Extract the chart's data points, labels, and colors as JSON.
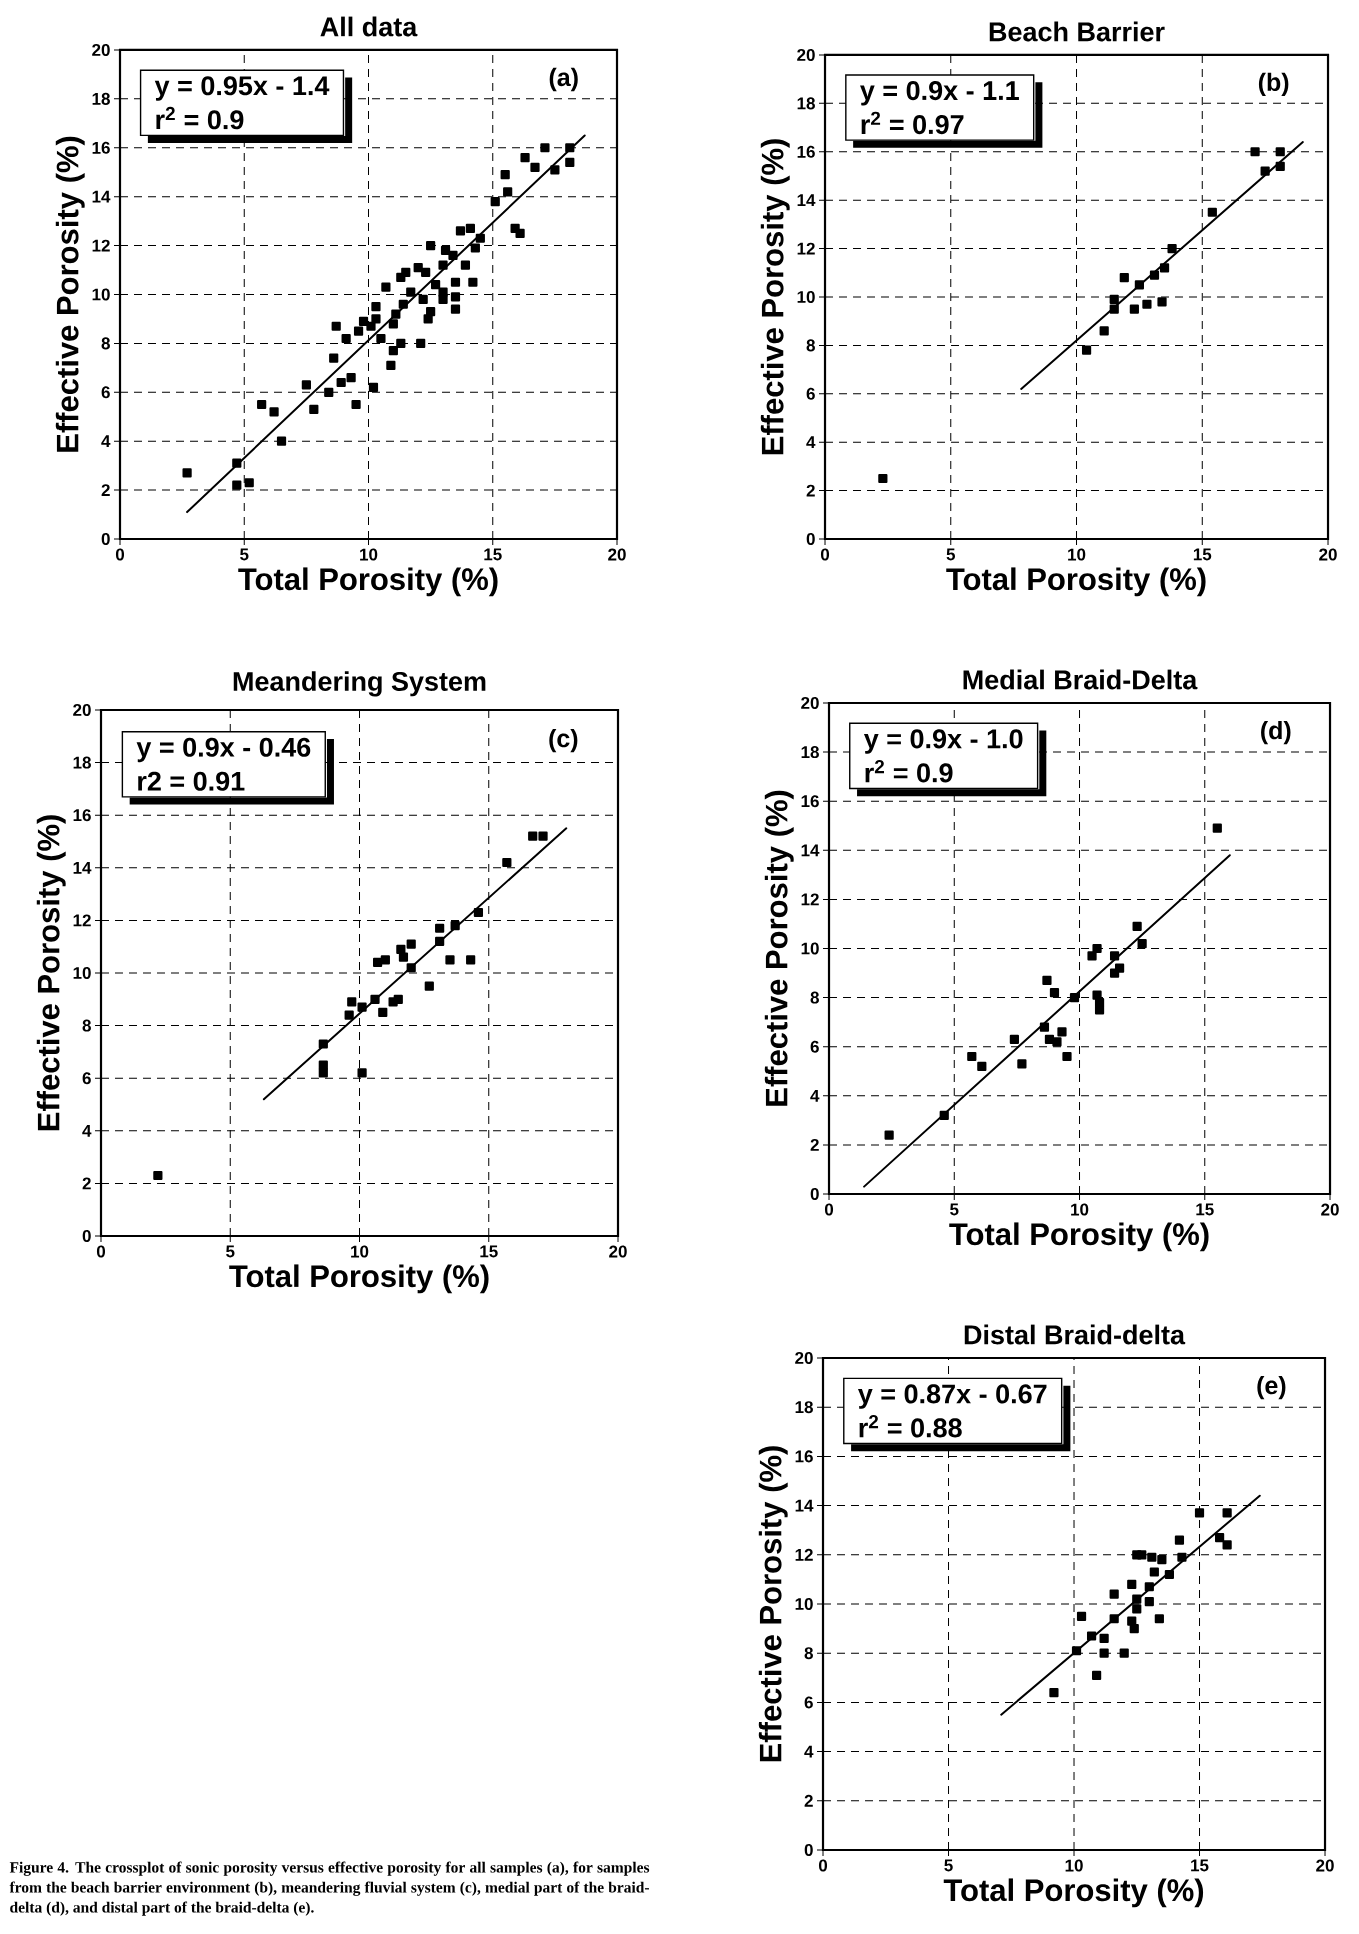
{
  "chart_data": [
    {
      "type": "scatter",
      "title": "All data",
      "xlabel": "Total Porosity (%)",
      "ylabel": "Effective Porosity (%)",
      "xlim": [
        0,
        20
      ],
      "ylim": [
        0,
        20
      ],
      "xticks": [
        0,
        5,
        10,
        15,
        20
      ],
      "yticks": [
        0,
        2,
        4,
        6,
        8,
        10,
        12,
        14,
        16,
        18,
        20
      ],
      "grid": true,
      "marker": "square",
      "annotations": [
        "y = 0.95x - 1.4",
        "r$^{2}$  = 0.9",
        "(a)",
        "Figure 4. The crossplot of sonic porosity versus effective porosity for all samples (a), for samples from the beach barrier environment (b), meandering fluvial system (c), medial part of the braid-delta (d), and distal part of the braid-delta (e)."
      ],
      "series": [
        {
          "color": "#000000",
          "x": [
            2.7,
            4.7,
            4.7,
            5.2,
            5.7,
            6.2,
            6.5,
            7.5,
            7.8,
            8.4,
            8.6,
            8.7,
            9.1,
            8.9,
            9.3,
            9.5,
            9.6,
            9.8,
            10.2,
            10.1,
            10.3,
            10.5,
            10.7,
            10.9,
            11.0,
            11.0,
            11.3,
            11.4,
            11.5,
            11.7,
            12.0,
            12.1,
            12.2,
            12.4,
            12.5,
            12.7,
            13.0,
            13.1,
            13.4,
            13.5,
            13.5,
            13.5,
            13.7,
            13.9,
            14.1,
            14.2,
            14.3,
            14.5,
            15.1,
            15.5,
            15.6,
            15.9,
            16.1,
            16.3,
            16.7,
            17.1,
            17.5,
            18.1,
            18.1,
            11.3,
            12.3,
            13.0,
            11.1,
            10.3,
            12.5,
            13.0
          ],
          "values": [
            2.7,
            3.1,
            2.2,
            2.3,
            5.5,
            5.2,
            4.0,
            6.3,
            5.3,
            6.0,
            7.4,
            8.7,
            8.2,
            6.4,
            6.6,
            5.5,
            8.5,
            8.9,
            6.2,
            8.7,
            9.5,
            8.2,
            10.3,
            7.1,
            7.7,
            8.8,
            8.0,
            9.6,
            10.9,
            10.1,
            11.1,
            8.0,
            9.8,
            9.0,
            12.0,
            10.4,
            9.8,
            11.8,
            11.6,
            10.5,
            9.9,
            9.4,
            12.6,
            11.2,
            12.7,
            10.5,
            11.9,
            12.3,
            13.8,
            14.9,
            14.2,
            12.7,
            12.5,
            15.6,
            15.2,
            16.0,
            15.1,
            16.0,
            15.4,
            10.7,
            10.9,
            11.2,
            9.2,
            9.0,
            9.3,
            10.1
          ]
        },
        {
          "type": "line",
          "marker": "none",
          "color": "#000000",
          "x": [
            2.7,
            18.7
          ],
          "values": [
            1.1,
            16.5
          ]
        }
      ]
    },
    {
      "type": "scatter",
      "title": "Beach Barrier",
      "xlabel": "Total Porosity (%)",
      "ylabel": "Effective Porosity (%)",
      "xlim": [
        0,
        20
      ],
      "ylim": [
        0,
        20
      ],
      "xticks": [
        0,
        5,
        10,
        15,
        20
      ],
      "yticks": [
        0,
        2,
        4,
        6,
        8,
        10,
        12,
        14,
        16,
        18,
        20
      ],
      "grid": true,
      "marker": "square",
      "annotations": [
        "y = 0.9x - 1.1",
        "r$^{2}$ = 0.97",
        "(b)"
      ],
      "series": [
        {
          "color": "#000000",
          "x": [
            2.3,
            10.4,
            11.1,
            11.5,
            11.5,
            11.9,
            12.3,
            12.5,
            12.8,
            13.1,
            13.4,
            13.5,
            13.8,
            15.4,
            17.1,
            17.5,
            18.1,
            18.1
          ],
          "values": [
            2.5,
            7.8,
            8.6,
            9.9,
            9.5,
            10.8,
            9.5,
            10.5,
            9.7,
            10.9,
            9.8,
            11.2,
            12.0,
            13.5,
            16.0,
            15.2,
            16.0,
            15.4
          ]
        },
        {
          "type": "line",
          "marker": "none",
          "color": "#000000",
          "x": [
            7.8,
            19.0
          ],
          "values": [
            6.2,
            16.4
          ]
        }
      ]
    },
    {
      "type": "scatter",
      "title": "Meandering System",
      "xlabel": "Total Porosity (%)",
      "ylabel": "Effective Porosity (%)",
      "xlim": [
        0,
        20
      ],
      "ylim": [
        0,
        20
      ],
      "xticks": [
        0,
        5,
        10,
        15,
        20
      ],
      "yticks": [
        0,
        2,
        4,
        6,
        8,
        10,
        12,
        14,
        16,
        18,
        20
      ],
      "grid": true,
      "marker": "square",
      "annotations": [
        "y = 0.9x - 0.46",
        "r2 = 0.91",
        "(c)"
      ],
      "series": [
        {
          "color": "#000000",
          "x": [
            2.2,
            8.6,
            8.6,
            8.6,
            10.1,
            9.6,
            9.7,
            10.1,
            10.6,
            10.9,
            11.3,
            11.5,
            10.7,
            11.0,
            11.6,
            11.7,
            12.0,
            12.0,
            12.7,
            13.1,
            13.1,
            13.5,
            13.7,
            14.3,
            14.6,
            15.7,
            16.7,
            17.1
          ],
          "values": [
            2.3,
            7.3,
            6.5,
            6.2,
            6.2,
            8.4,
            8.9,
            8.7,
            9.0,
            8.5,
            8.9,
            9.0,
            10.4,
            10.5,
            10.9,
            10.6,
            11.1,
            10.2,
            9.5,
            11.7,
            11.2,
            10.5,
            11.8,
            10.5,
            12.3,
            14.2,
            15.2,
            15.2
          ]
        },
        {
          "type": "line",
          "marker": "none",
          "color": "#000000",
          "x": [
            6.3,
            18.0
          ],
          "values": [
            5.2,
            15.5
          ]
        }
      ]
    },
    {
      "type": "scatter",
      "title": "Medial Braid-Delta",
      "xlabel": "Total Porosity (%)",
      "ylabel": "Effective Porosity (%)",
      "xlim": [
        0,
        20
      ],
      "ylim": [
        0,
        20
      ],
      "xticks": [
        0,
        5,
        10,
        15,
        20
      ],
      "yticks": [
        0,
        2,
        4,
        6,
        8,
        10,
        12,
        14,
        16,
        18,
        20
      ],
      "grid": true,
      "marker": "square",
      "annotations": [
        "y = 0.9x - 1.0",
        "r$^{2}$  = 0.9",
        "(d)"
      ],
      "series": [
        {
          "color": "#000000",
          "x": [
            2.4,
            4.6,
            5.7,
            6.1,
            7.4,
            7.7,
            8.6,
            8.7,
            8.8,
            9.0,
            9.1,
            9.3,
            9.5,
            9.8,
            10.5,
            10.7,
            10.7,
            10.8,
            10.8,
            11.4,
            11.4,
            11.6,
            12.3,
            12.5,
            15.5
          ],
          "values": [
            2.4,
            3.2,
            5.6,
            5.2,
            6.3,
            5.3,
            6.8,
            8.7,
            6.3,
            8.2,
            6.2,
            6.6,
            5.6,
            8.0,
            9.7,
            10.0,
            8.1,
            7.8,
            7.5,
            9.7,
            9.0,
            9.2,
            10.9,
            10.2,
            14.9
          ]
        },
        {
          "type": "line",
          "marker": "none",
          "color": "#000000",
          "x": [
            1.4,
            16.0
          ],
          "values": [
            0.3,
            13.8
          ]
        }
      ]
    },
    {
      "type": "scatter",
      "title": "Distal Braid-delta",
      "xlabel": "Total Porosity (%)",
      "ylabel": "Effective Porosity (%)",
      "xlim": [
        0,
        20
      ],
      "ylim": [
        0,
        20
      ],
      "xticks": [
        0,
        5,
        10,
        15,
        20
      ],
      "yticks": [
        0,
        2,
        4,
        6,
        8,
        10,
        12,
        14,
        16,
        18,
        20
      ],
      "grid": true,
      "marker": "square",
      "annotations": [
        "y = 0.87x - 0.67",
        "r$^{2}$ = 0.88",
        "(e)"
      ],
      "series": [
        {
          "color": "#000000",
          "x": [
            9.2,
            10.1,
            10.3,
            10.7,
            10.9,
            11.2,
            11.2,
            11.6,
            11.6,
            12.0,
            12.3,
            12.4,
            12.3,
            12.5,
            12.5,
            12.7,
            12.5,
            13.0,
            13.0,
            13.1,
            13.5,
            13.2,
            13.4,
            13.8,
            14.2,
            14.3,
            15.0,
            16.1,
            15.8,
            16.1
          ],
          "values": [
            6.4,
            8.1,
            9.5,
            8.7,
            7.1,
            8.6,
            8.0,
            9.4,
            10.4,
            8.0,
            9.3,
            9.0,
            10.8,
            10.2,
            12.0,
            12.0,
            9.8,
            10.7,
            10.1,
            11.9,
            11.8,
            11.3,
            9.4,
            11.2,
            12.6,
            11.9,
            13.7,
            13.7,
            12.7,
            12.4
          ]
        },
        {
          "type": "line",
          "marker": "none",
          "color": "#000000",
          "x": [
            7.1,
            17.4
          ],
          "values": [
            5.5,
            14.4
          ]
        }
      ]
    }
  ]
}
